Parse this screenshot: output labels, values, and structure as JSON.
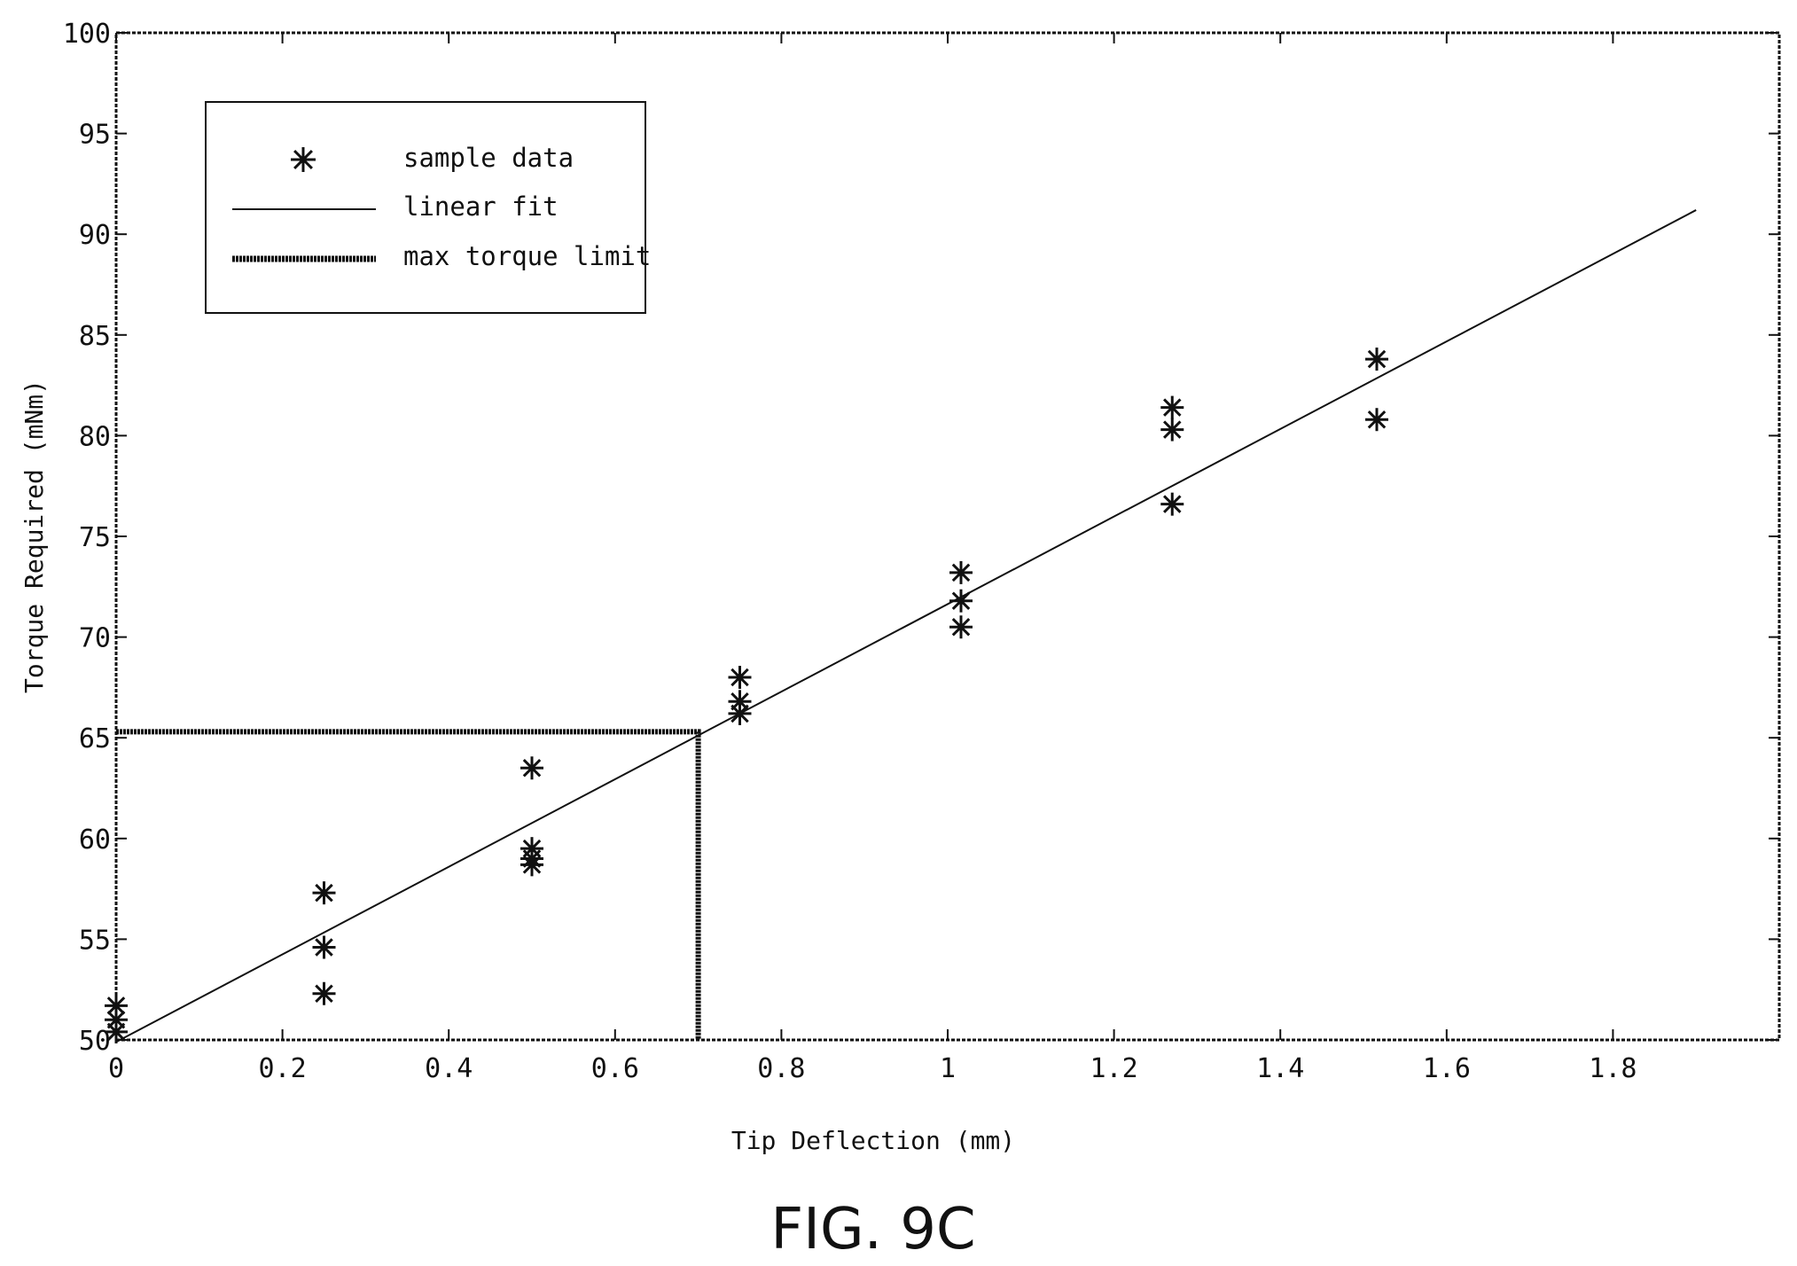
{
  "chart_data": {
    "type": "scatter",
    "xlabel": "Tip Deflection (mm)",
    "ylabel": "Torque Required (mNm)",
    "xlim": [
      0,
      2.0
    ],
    "ylim": [
      50,
      100
    ],
    "x_ticks": [
      0,
      0.2,
      0.4,
      0.6,
      0.8,
      1,
      1.2,
      1.4,
      1.6,
      1.8
    ],
    "x_tick_labels": [
      "0",
      "0.2",
      "0.4",
      "0.6",
      "0.8",
      "1",
      "1.2",
      "1.4",
      "1.6",
      "1.8"
    ],
    "y_ticks": [
      50,
      55,
      60,
      65,
      70,
      75,
      80,
      85,
      90,
      95,
      100
    ],
    "y_tick_labels": [
      "50",
      "55",
      "60",
      "65",
      "70",
      "75",
      "80",
      "85",
      "90",
      "95",
      "100"
    ],
    "grid": false,
    "legend_position": "top-left",
    "legend": [
      {
        "label": "sample data",
        "style": "asterisk"
      },
      {
        "label": "linear fit",
        "style": "thin-line"
      },
      {
        "label": "max torque limit",
        "style": "thick-line"
      }
    ],
    "series": [
      {
        "name": "sample data",
        "type": "scatter",
        "points": [
          {
            "x": 0,
            "y": 51.7
          },
          {
            "x": 0,
            "y": 51.0
          },
          {
            "x": 0,
            "y": 50.4
          },
          {
            "x": 0.25,
            "y": 57.3
          },
          {
            "x": 0.25,
            "y": 54.6
          },
          {
            "x": 0.25,
            "y": 52.3
          },
          {
            "x": 0.5,
            "y": 63.5
          },
          {
            "x": 0.5,
            "y": 59.5
          },
          {
            "x": 0.5,
            "y": 59.0
          },
          {
            "x": 0.5,
            "y": 58.7
          },
          {
            "x": 0.75,
            "y": 68.0
          },
          {
            "x": 0.75,
            "y": 66.8
          },
          {
            "x": 0.75,
            "y": 66.2
          },
          {
            "x": 1.016,
            "y": 73.2
          },
          {
            "x": 1.016,
            "y": 71.8
          },
          {
            "x": 1.016,
            "y": 70.5
          },
          {
            "x": 1.27,
            "y": 81.4
          },
          {
            "x": 1.27,
            "y": 80.3
          },
          {
            "x": 1.27,
            "y": 76.6
          },
          {
            "x": 1.516,
            "y": 83.8
          },
          {
            "x": 1.516,
            "y": 80.8
          }
        ]
      },
      {
        "name": "linear fit",
        "type": "line",
        "points": [
          {
            "x": 0,
            "y": 49.9
          },
          {
            "x": 1.9,
            "y": 91.2
          }
        ]
      },
      {
        "name": "max torque limit",
        "type": "line",
        "points": [
          {
            "x": 0,
            "y": 65.3
          },
          {
            "x": 0.7,
            "y": 65.3
          },
          {
            "x": 0.7,
            "y": 50
          }
        ]
      }
    ]
  },
  "caption": "FIG. 9C",
  "colors": {
    "ink": "#111111",
    "background": "#ffffff"
  }
}
